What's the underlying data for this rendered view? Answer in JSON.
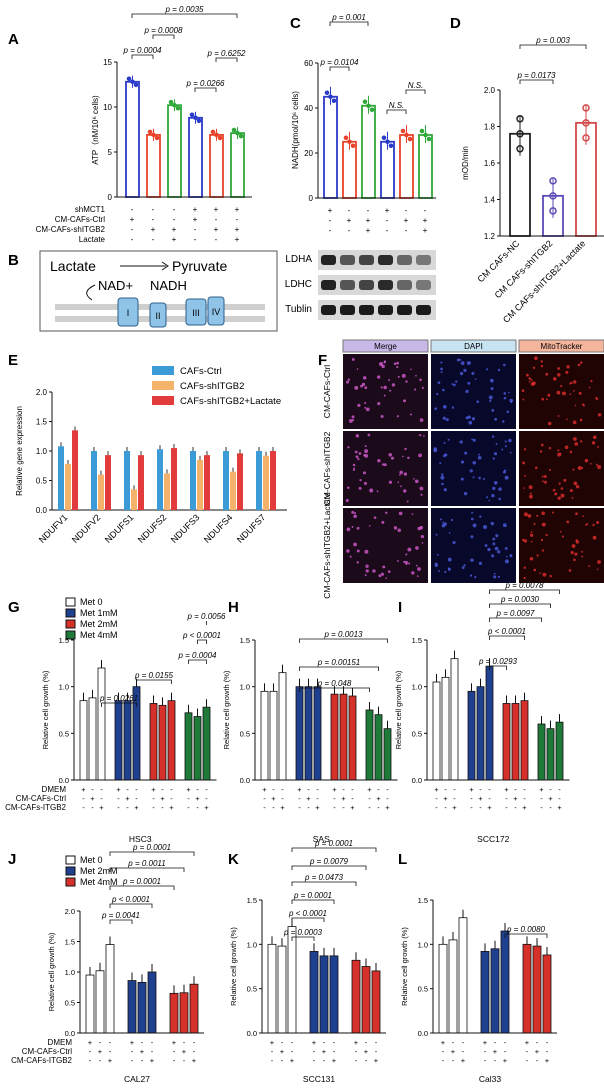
{
  "panels": {
    "A": {
      "label": "A",
      "ylabel": "ATP（nM/10⁶ cells)",
      "ticks": [
        "0",
        "5",
        "10",
        "15"
      ],
      "rows": [
        {
          "name": "shMCT1",
          "v": [
            "-",
            "-",
            "-",
            "+",
            "+",
            "+"
          ]
        },
        {
          "name": "CM-CAFs-Ctrl",
          "v": [
            "+",
            "-",
            "-",
            "+",
            "-",
            "-"
          ]
        },
        {
          "name": "CM-CAFs-shITGB2",
          "v": [
            "-",
            "+",
            "+",
            "-",
            "+",
            "+"
          ]
        },
        {
          "name": "Lactate",
          "v": [
            "-",
            "-",
            "+",
            "-",
            "-",
            "+"
          ]
        }
      ],
      "pvals": [
        "p = 0.0035",
        "p = 0.0008",
        "p = 0.0004",
        "p = 0.6252",
        "p = 0.0266"
      ]
    },
    "B": {
      "label": "B",
      "lactate": "Lactate",
      "pyruvate": "Pyruvate",
      "nad": "NAD+",
      "nadh": "NADH",
      "complexes": [
        "I",
        "II",
        "III",
        "IV"
      ]
    },
    "C": {
      "label": "C",
      "ylabel": "NADH(pmol/10⁶ cells)",
      "ticks": [
        "0",
        "20",
        "40",
        "60"
      ],
      "rows": [
        {
          "v": [
            "+",
            "-",
            "-",
            "+",
            "-",
            "-"
          ]
        },
        {
          "v": [
            "-",
            "+",
            "+",
            "-",
            "+",
            "+"
          ]
        },
        {
          "v": [
            "-",
            "-",
            "+",
            "-",
            "-",
            "+"
          ]
        }
      ],
      "pvals": [
        "p = 0.001",
        "p = 0.0104",
        "N.S.",
        "N.S."
      ],
      "blots": [
        "LDHA",
        "LDHC",
        "Tublin"
      ]
    },
    "D": {
      "label": "D",
      "ylabel": "mOD/min",
      "ticks": [
        "1.2",
        "1.4",
        "1.6",
        "1.8",
        "2.0"
      ],
      "cats": [
        "CM CAFs-NC",
        "CM CAFs-shITGB2",
        "CM CAFs-shITGB2+Lactate"
      ],
      "pvals": [
        "p = 0.003",
        "p = 0.0173"
      ]
    },
    "E": {
      "label": "E",
      "ylabel": "Relative gene expression",
      "ticks": [
        "0.0",
        "0.5",
        "1.0",
        "1.5",
        "2.0"
      ],
      "legend": [
        "CAFs-Ctrl",
        "CAFs-shITGB2",
        "CAFs-shITGB2+Lactate"
      ]
    },
    "F": {
      "label": "F",
      "cols": [
        "Merge",
        "DAPI",
        "MitoTracker"
      ],
      "rows": [
        "CM-CAFs-Ctrl",
        "CM-CAFs-shITGB2",
        "CM-CAFs-shITGB2+Lactate"
      ]
    },
    "G": {
      "label": "G",
      "ylabel": "Relative cell growth (%)",
      "ticks": [
        "0.0",
        "0.5",
        "1.0",
        "1.5"
      ],
      "xlabel": "HSC3",
      "legend": [
        "Met 0",
        "Met  1mM",
        "Met  2mM",
        "Met  4mM"
      ],
      "rows": [
        {
          "name": "DMEM",
          "v": [
            "+",
            "-",
            "-",
            "+",
            "-",
            "-",
            "+",
            "-",
            "-",
            "+",
            "-",
            "-"
          ]
        },
        {
          "name": "CM-CAFs-Ctrl",
          "v": [
            "-",
            "+",
            "-",
            "-",
            "+",
            "-",
            "-",
            "+",
            "-",
            "-",
            "+",
            "-"
          ]
        },
        {
          "name": "CM-CAFs-ITGB2",
          "v": [
            "-",
            "-",
            "+",
            "-",
            "-",
            "+",
            "-",
            "-",
            "+",
            "-",
            "-",
            "+"
          ]
        }
      ],
      "pvals": [
        "p = 0.0056",
        "p < 0.0001",
        "p = 0.0004",
        "p = 0.0155",
        "p = 0.0261"
      ]
    },
    "H": {
      "label": "H",
      "ylabel": "Relative cell growth (%)",
      "ticks": [
        "0.0",
        "0.5",
        "1.0",
        "1.5"
      ],
      "xlabel": "SAS",
      "pvals": [
        "p = 0.0013",
        "p = 0.00151",
        "p = 0.048"
      ]
    },
    "I": {
      "label": "I",
      "ylabel": "Relative cell growth (%)",
      "ticks": [
        "0.0",
        "0.5",
        "1.0",
        "1.5"
      ],
      "xlabel": "SCC172",
      "pvals": [
        "p = 0.0078",
        "p = 0.0030",
        "p = 0.0097",
        "p < 0.0001",
        "p = 0.0293"
      ]
    },
    "J": {
      "label": "J",
      "ylabel": "Relative cell growth (%)",
      "ticks": [
        "0.0",
        "0.5",
        "1.0",
        "1.5",
        "2.0"
      ],
      "xlabel": "CAL27",
      "legend": [
        "Met 0",
        "Met  2mM",
        "Met 4mM"
      ],
      "rows": [
        {
          "name": "DMEM",
          "v": [
            "+",
            "-",
            "-",
            "+",
            "-",
            "-",
            "+",
            "-",
            "-"
          ]
        },
        {
          "name": "CM-CAFs-Ctrl",
          "v": [
            "-",
            "+",
            "-",
            "-",
            "+",
            "-",
            "-",
            "+",
            "-"
          ]
        },
        {
          "name": "CM-CAFs-ITGB2",
          "v": [
            "-",
            "-",
            "+",
            "-",
            "-",
            "+",
            "-",
            "-",
            "+"
          ]
        }
      ],
      "pvals": [
        "p = 0.0001",
        "p = 0.0011",
        "p = 0.0001",
        "p < 0.0001",
        "p = 0.0041"
      ]
    },
    "K": {
      "label": "K",
      "ylabel": "Relative cell growth (%)",
      "ticks": [
        "0.0",
        "0.5",
        "1.0",
        "1.5"
      ],
      "xlabel": "SCC131",
      "pvals": [
        "p = 0.0001",
        "p = 0.0079",
        "p = 0.0473",
        "p = 0.0001",
        "p < 0.0001",
        "p = 0.0003"
      ]
    },
    "L": {
      "label": "L",
      "ylabel": "Relative cell growth (%)",
      "ticks": [
        "0.0",
        "0.5",
        "1.0",
        "1.5"
      ],
      "xlabel": "Cal33",
      "pvals": [
        "p = 0.0080"
      ]
    }
  },
  "chart_data": [
    {
      "panel": "A",
      "type": "bar",
      "values": [
        12.8,
        6.9,
        10.2,
        8.8,
        6.9,
        7.1
      ],
      "ylim": [
        0,
        15
      ],
      "colors": [
        "#2b3bc9",
        "#e8432a",
        "#2fa83a",
        "#2b3bc9",
        "#e8432a",
        "#2fa83a"
      ]
    },
    {
      "panel": "C",
      "type": "bar",
      "values": [
        45,
        25,
        41,
        25,
        28,
        28
      ],
      "ylim": [
        0,
        60
      ],
      "colors": [
        "#2b3bc9",
        "#e8432a",
        "#2fa83a",
        "#2b3bc9",
        "#e8432a",
        "#2fa83a"
      ]
    },
    {
      "panel": "D",
      "type": "bar",
      "categories": [
        "CM CAFs-NC",
        "CM CAFs-shITGB2",
        "CM CAFs-shITGB2+Lactate"
      ],
      "values": [
        1.76,
        1.42,
        1.82
      ],
      "ylim": [
        1.2,
        2.0
      ],
      "colors": [
        "#222222",
        "#5a4bb8",
        "#d24a4a"
      ]
    },
    {
      "panel": "E",
      "type": "bar",
      "categories": [
        "NDUFV1",
        "NDUFV2",
        "NDUFS1",
        "NDUFS2",
        "NDUFS3",
        "NDUFS4",
        "NDUFS7"
      ],
      "series": [
        {
          "name": "CAFs-Ctrl",
          "values": [
            1.08,
            1.0,
            1.0,
            1.03,
            1.0,
            1.0,
            1.0
          ],
          "color": "#3b9bd6"
        },
        {
          "name": "CAFs-shITGB2",
          "values": [
            0.78,
            0.6,
            0.35,
            0.62,
            0.85,
            0.65,
            0.92
          ],
          "color": "#f5b26b"
        },
        {
          "name": "CAFs-shITGB2+Lactate",
          "values": [
            1.35,
            0.93,
            0.93,
            1.05,
            0.93,
            0.96,
            1.0
          ],
          "color": "#e23b3b"
        }
      ],
      "ylim": [
        0,
        2.0
      ]
    },
    {
      "panel": "G",
      "type": "bar",
      "values": [
        0.85,
        0.88,
        1.2,
        0.85,
        0.85,
        1.0,
        0.82,
        0.8,
        0.85,
        0.72,
        0.68,
        0.78
      ],
      "ylim": [
        0,
        1.5
      ]
    },
    {
      "panel": "H",
      "type": "bar",
      "values": [
        0.95,
        0.95,
        1.15,
        1.0,
        1.0,
        1.0,
        0.92,
        0.92,
        0.9,
        0.75,
        0.7,
        0.55
      ],
      "ylim": [
        0,
        1.5
      ]
    },
    {
      "panel": "I",
      "type": "bar",
      "values": [
        1.05,
        1.1,
        1.3,
        0.95,
        1.0,
        1.22,
        0.82,
        0.82,
        0.85,
        0.6,
        0.55,
        0.62
      ],
      "ylim": [
        0,
        1.5
      ]
    },
    {
      "panel": "J",
      "type": "bar",
      "values": [
        0.95,
        1.02,
        1.45,
        0.86,
        0.83,
        1.0,
        0.65,
        0.66,
        0.8
      ],
      "ylim": [
        0,
        2.0
      ]
    },
    {
      "panel": "K",
      "type": "bar",
      "values": [
        1.0,
        0.98,
        1.2,
        0.92,
        0.87,
        0.87,
        0.82,
        0.75,
        0.7
      ],
      "ylim": [
        0,
        1.5
      ]
    },
    {
      "panel": "L",
      "type": "bar",
      "values": [
        1.0,
        1.05,
        1.3,
        0.92,
        0.95,
        1.15,
        1.0,
        0.98,
        0.88
      ],
      "ylim": [
        0,
        1.5
      ]
    }
  ]
}
